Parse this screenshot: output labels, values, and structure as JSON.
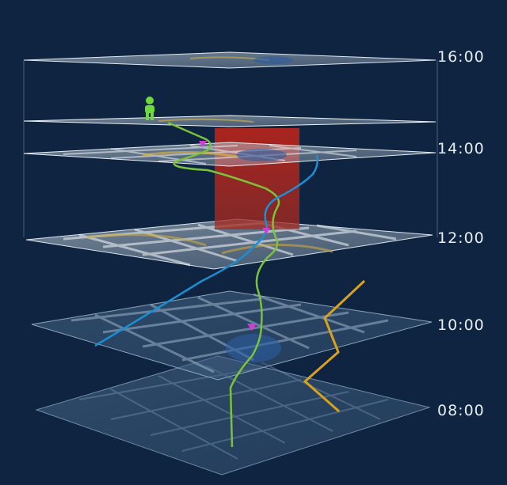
{
  "time_axis": {
    "labels": [
      "16:00",
      "14:00",
      "12:00",
      "10:00",
      "08:00"
    ]
  },
  "colors": {
    "background": "#0f2440",
    "green_track": "#7cc23a",
    "blue_track": "#1a8fd6",
    "orange_track": "#d9a21a",
    "red_block": "#b3241c",
    "magenta_marker": "#d63ad6",
    "person_icon": "#6fd83a"
  },
  "icons": {
    "person": "person-icon",
    "markers": [
      "marker-triangle-icon",
      "marker-triangle-icon",
      "marker-triangle-icon"
    ]
  }
}
